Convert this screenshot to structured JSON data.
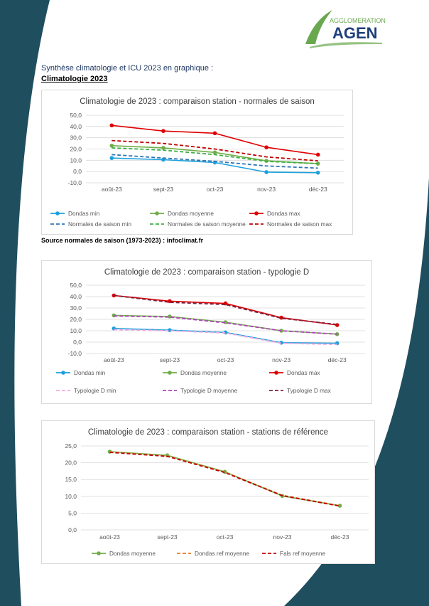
{
  "header": {
    "logo_line1": "AGGLOMERATION",
    "logo_line2": "AGEN",
    "heading": "Synthèse climatologie et ICU 2023 en graphique :",
    "subheading": "Climatologie 2023",
    "source": "Source normales de saison (1973-2023) : infoclimat.fr"
  },
  "colors": {
    "background_accent": "#1f4e5f",
    "logo_green": "#6aa84f",
    "logo_blue": "#1f3f7a"
  },
  "chart_data": [
    {
      "type": "line",
      "title": "Climatologie de 2023 : comparaison station - normales de saison",
      "categories": [
        "août-23",
        "sept-23",
        "oct-23",
        "nov-23",
        "déc-23"
      ],
      "ylim": [
        -10,
        50
      ],
      "yticks": [
        "50,0",
        "40,0",
        "30,0",
        "20,0",
        "10,0",
        "0,0",
        "-10,0"
      ],
      "grid": true,
      "legend_position": "bottom",
      "series": [
        {
          "name": "Dondas min",
          "values": [
            12,
            10.5,
            8,
            -0.5,
            -1
          ],
          "color": "#1ca0dc",
          "dashed": false,
          "marker": true
        },
        {
          "name": "Dondas moyenne",
          "values": [
            23,
            21,
            17,
            9.5,
            7
          ],
          "color": "#70ad47",
          "dashed": false,
          "marker": true
        },
        {
          "name": "Dondas max",
          "values": [
            41,
            36,
            34,
            21.5,
            15
          ],
          "color": "#e00000",
          "dashed": false,
          "marker": true
        },
        {
          "name": "Normales de saison min",
          "values": [
            15,
            12,
            9,
            5,
            3
          ],
          "color": "#2e75b6",
          "dashed": true,
          "marker": false
        },
        {
          "name": "Normales de saison moyenne",
          "values": [
            21,
            19,
            15,
            9,
            7
          ],
          "color": "#3cb043",
          "dashed": true,
          "marker": false
        },
        {
          "name": "Normales de saison max",
          "values": [
            27.5,
            25,
            20,
            13,
            9.5
          ],
          "color": "#c00000",
          "dashed": true,
          "marker": false
        }
      ]
    },
    {
      "type": "line",
      "title": "Climatologie de 2023 : comparaison station - typologie D",
      "categories": [
        "août-23",
        "sept-23",
        "oct-23",
        "nov-23",
        "déc-23"
      ],
      "ylim": [
        -10,
        50
      ],
      "yticks": [
        "50,0",
        "40,0",
        "30,0",
        "20,0",
        "10,0",
        "0,0",
        "-10,0"
      ],
      "grid": true,
      "legend_position": "bottom",
      "series": [
        {
          "name": "Dondas min",
          "values": [
            12,
            10.5,
            8.5,
            -0.5,
            -1
          ],
          "color": "#1ca0dc",
          "dashed": false,
          "marker": true
        },
        {
          "name": "Dondas moyenne",
          "values": [
            23.5,
            22.5,
            17.5,
            10,
            7
          ],
          "color": "#70ad47",
          "dashed": false,
          "marker": true
        },
        {
          "name": "Dondas max",
          "values": [
            41,
            36,
            34,
            21.5,
            15
          ],
          "color": "#e00000",
          "dashed": false,
          "marker": true
        },
        {
          "name": "Typologie D min",
          "values": [
            11,
            10,
            8,
            -1,
            -2
          ],
          "color": "#f4a6e0",
          "dashed": true,
          "marker": false
        },
        {
          "name": "Typologie D moyenne",
          "values": [
            23,
            22,
            17,
            10,
            7
          ],
          "color": "#b040c0",
          "dashed": true,
          "marker": false
        },
        {
          "name": "Typologie D max",
          "values": [
            41,
            35,
            33,
            21,
            15.5
          ],
          "color": "#7a2040",
          "dashed": true,
          "marker": false
        }
      ]
    },
    {
      "type": "line",
      "title": "Climatologie de 2023 : comparaison station - stations de référence",
      "categories": [
        "août-23",
        "sept-23",
        "oct-23",
        "nov-23",
        "déc-23"
      ],
      "ylim": [
        0,
        25
      ],
      "yticks": [
        "25,0",
        "20,0",
        "15,0",
        "10,0",
        "5,0",
        "0,0"
      ],
      "grid": true,
      "legend_position": "bottom",
      "series": [
        {
          "name": "Dondas moyenne",
          "values": [
            23.3,
            22.2,
            17.3,
            10.1,
            7.2
          ],
          "color": "#70ad47",
          "dashed": false,
          "marker": true
        },
        {
          "name": "Dondas ref moyenne",
          "values": [
            23.2,
            22.0,
            17.2,
            10.3,
            7.2
          ],
          "color": "#e87c1e",
          "dashed": true,
          "marker": false
        },
        {
          "name": "Fals ref moyenne",
          "values": [
            23.1,
            21.9,
            17.1,
            10.2,
            7.1
          ],
          "color": "#c00000",
          "dashed": true,
          "marker": false
        }
      ]
    }
  ]
}
